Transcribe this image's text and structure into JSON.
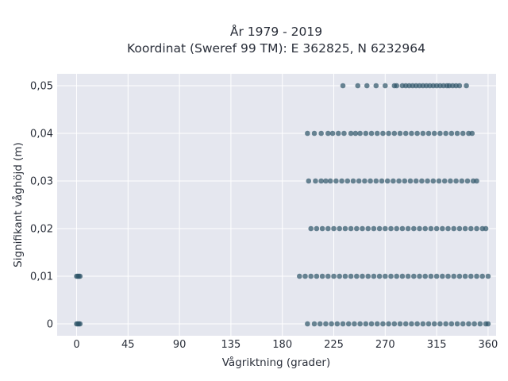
{
  "chart_data": {
    "type": "scatter",
    "title_line1": "År 1979 - 2019",
    "title_line2": "Koordinat (Sweref 99 TM): E 362825, N 6232964",
    "xlabel": "Vågriktning (grader)",
    "ylabel": "Signifikant våghöjd (m)",
    "xlim": [
      -17,
      367
    ],
    "ylim": [
      -0.0025,
      0.0525
    ],
    "x_ticks": [
      0,
      45,
      90,
      135,
      180,
      225,
      270,
      315,
      360
    ],
    "y_ticks": [
      0,
      0.01,
      0.02,
      0.03,
      0.04,
      0.05
    ],
    "y_tick_labels": [
      "0",
      "0,01",
      "0,02",
      "0,03",
      "0,04",
      "0,05"
    ],
    "grid": true,
    "background": "#e5e7ef",
    "marker_color": "#2e5468",
    "series": [
      {
        "values": [
          {
            "x": 0,
            "y": 0
          },
          {
            "x": 1,
            "y": 0
          },
          {
            "x": 2,
            "y": 0
          },
          {
            "x": 3,
            "y": 0
          },
          {
            "x": 0,
            "y": 0.01
          },
          {
            "x": 1,
            "y": 0.01
          },
          {
            "x": 2,
            "y": 0.01
          },
          {
            "x": 3,
            "y": 0.01
          },
          {
            "x": 202,
            "y": 0
          },
          {
            "x": 208,
            "y": 0
          },
          {
            "x": 213,
            "y": 0
          },
          {
            "x": 218,
            "y": 0
          },
          {
            "x": 223,
            "y": 0
          },
          {
            "x": 228,
            "y": 0
          },
          {
            "x": 233,
            "y": 0
          },
          {
            "x": 238,
            "y": 0
          },
          {
            "x": 243,
            "y": 0
          },
          {
            "x": 248,
            "y": 0
          },
          {
            "x": 253,
            "y": 0
          },
          {
            "x": 258,
            "y": 0
          },
          {
            "x": 263,
            "y": 0
          },
          {
            "x": 268,
            "y": 0
          },
          {
            "x": 273,
            "y": 0
          },
          {
            "x": 278,
            "y": 0
          },
          {
            "x": 283,
            "y": 0
          },
          {
            "x": 288,
            "y": 0
          },
          {
            "x": 293,
            "y": 0
          },
          {
            "x": 298,
            "y": 0
          },
          {
            "x": 303,
            "y": 0
          },
          {
            "x": 308,
            "y": 0
          },
          {
            "x": 313,
            "y": 0
          },
          {
            "x": 318,
            "y": 0
          },
          {
            "x": 323,
            "y": 0
          },
          {
            "x": 328,
            "y": 0
          },
          {
            "x": 333,
            "y": 0
          },
          {
            "x": 338,
            "y": 0
          },
          {
            "x": 343,
            "y": 0
          },
          {
            "x": 348,
            "y": 0
          },
          {
            "x": 353,
            "y": 0
          },
          {
            "x": 358,
            "y": 0
          },
          {
            "x": 360,
            "y": 0
          },
          {
            "x": 195,
            "y": 0.01
          },
          {
            "x": 200,
            "y": 0.01
          },
          {
            "x": 205,
            "y": 0.01
          },
          {
            "x": 210,
            "y": 0.01
          },
          {
            "x": 215,
            "y": 0.01
          },
          {
            "x": 220,
            "y": 0.01
          },
          {
            "x": 225,
            "y": 0.01
          },
          {
            "x": 230,
            "y": 0.01
          },
          {
            "x": 235,
            "y": 0.01
          },
          {
            "x": 240,
            "y": 0.01
          },
          {
            "x": 245,
            "y": 0.01
          },
          {
            "x": 250,
            "y": 0.01
          },
          {
            "x": 255,
            "y": 0.01
          },
          {
            "x": 260,
            "y": 0.01
          },
          {
            "x": 265,
            "y": 0.01
          },
          {
            "x": 270,
            "y": 0.01
          },
          {
            "x": 275,
            "y": 0.01
          },
          {
            "x": 280,
            "y": 0.01
          },
          {
            "x": 285,
            "y": 0.01
          },
          {
            "x": 290,
            "y": 0.01
          },
          {
            "x": 295,
            "y": 0.01
          },
          {
            "x": 300,
            "y": 0.01
          },
          {
            "x": 305,
            "y": 0.01
          },
          {
            "x": 310,
            "y": 0.01
          },
          {
            "x": 315,
            "y": 0.01
          },
          {
            "x": 320,
            "y": 0.01
          },
          {
            "x": 325,
            "y": 0.01
          },
          {
            "x": 330,
            "y": 0.01
          },
          {
            "x": 335,
            "y": 0.01
          },
          {
            "x": 340,
            "y": 0.01
          },
          {
            "x": 345,
            "y": 0.01
          },
          {
            "x": 350,
            "y": 0.01
          },
          {
            "x": 355,
            "y": 0.01
          },
          {
            "x": 360,
            "y": 0.01
          },
          {
            "x": 205,
            "y": 0.02
          },
          {
            "x": 210,
            "y": 0.02
          },
          {
            "x": 215,
            "y": 0.02
          },
          {
            "x": 220,
            "y": 0.02
          },
          {
            "x": 225,
            "y": 0.02
          },
          {
            "x": 230,
            "y": 0.02
          },
          {
            "x": 235,
            "y": 0.02
          },
          {
            "x": 240,
            "y": 0.02
          },
          {
            "x": 245,
            "y": 0.02
          },
          {
            "x": 250,
            "y": 0.02
          },
          {
            "x": 255,
            "y": 0.02
          },
          {
            "x": 260,
            "y": 0.02
          },
          {
            "x": 265,
            "y": 0.02
          },
          {
            "x": 270,
            "y": 0.02
          },
          {
            "x": 275,
            "y": 0.02
          },
          {
            "x": 280,
            "y": 0.02
          },
          {
            "x": 285,
            "y": 0.02
          },
          {
            "x": 290,
            "y": 0.02
          },
          {
            "x": 295,
            "y": 0.02
          },
          {
            "x": 300,
            "y": 0.02
          },
          {
            "x": 305,
            "y": 0.02
          },
          {
            "x": 310,
            "y": 0.02
          },
          {
            "x": 315,
            "y": 0.02
          },
          {
            "x": 320,
            "y": 0.02
          },
          {
            "x": 325,
            "y": 0.02
          },
          {
            "x": 330,
            "y": 0.02
          },
          {
            "x": 335,
            "y": 0.02
          },
          {
            "x": 340,
            "y": 0.02
          },
          {
            "x": 345,
            "y": 0.02
          },
          {
            "x": 350,
            "y": 0.02
          },
          {
            "x": 355,
            "y": 0.02
          },
          {
            "x": 358,
            "y": 0.02
          },
          {
            "x": 203,
            "y": 0.03
          },
          {
            "x": 209,
            "y": 0.03
          },
          {
            "x": 214,
            "y": 0.03
          },
          {
            "x": 218,
            "y": 0.03
          },
          {
            "x": 222,
            "y": 0.03
          },
          {
            "x": 227,
            "y": 0.03
          },
          {
            "x": 232,
            "y": 0.03
          },
          {
            "x": 237,
            "y": 0.03
          },
          {
            "x": 242,
            "y": 0.03
          },
          {
            "x": 247,
            "y": 0.03
          },
          {
            "x": 252,
            "y": 0.03
          },
          {
            "x": 257,
            "y": 0.03
          },
          {
            "x": 262,
            "y": 0.03
          },
          {
            "x": 267,
            "y": 0.03
          },
          {
            "x": 272,
            "y": 0.03
          },
          {
            "x": 277,
            "y": 0.03
          },
          {
            "x": 282,
            "y": 0.03
          },
          {
            "x": 287,
            "y": 0.03
          },
          {
            "x": 292,
            "y": 0.03
          },
          {
            "x": 297,
            "y": 0.03
          },
          {
            "x": 302,
            "y": 0.03
          },
          {
            "x": 307,
            "y": 0.03
          },
          {
            "x": 312,
            "y": 0.03
          },
          {
            "x": 317,
            "y": 0.03
          },
          {
            "x": 322,
            "y": 0.03
          },
          {
            "x": 327,
            "y": 0.03
          },
          {
            "x": 332,
            "y": 0.03
          },
          {
            "x": 337,
            "y": 0.03
          },
          {
            "x": 342,
            "y": 0.03
          },
          {
            "x": 347,
            "y": 0.03
          },
          {
            "x": 350,
            "y": 0.03
          },
          {
            "x": 202,
            "y": 0.04
          },
          {
            "x": 208,
            "y": 0.04
          },
          {
            "x": 214,
            "y": 0.04
          },
          {
            "x": 220,
            "y": 0.04
          },
          {
            "x": 224,
            "y": 0.04
          },
          {
            "x": 229,
            "y": 0.04
          },
          {
            "x": 234,
            "y": 0.04
          },
          {
            "x": 240,
            "y": 0.04
          },
          {
            "x": 244,
            "y": 0.04
          },
          {
            "x": 248,
            "y": 0.04
          },
          {
            "x": 253,
            "y": 0.04
          },
          {
            "x": 258,
            "y": 0.04
          },
          {
            "x": 263,
            "y": 0.04
          },
          {
            "x": 268,
            "y": 0.04
          },
          {
            "x": 273,
            "y": 0.04
          },
          {
            "x": 278,
            "y": 0.04
          },
          {
            "x": 283,
            "y": 0.04
          },
          {
            "x": 288,
            "y": 0.04
          },
          {
            "x": 293,
            "y": 0.04
          },
          {
            "x": 298,
            "y": 0.04
          },
          {
            "x": 303,
            "y": 0.04
          },
          {
            "x": 308,
            "y": 0.04
          },
          {
            "x": 313,
            "y": 0.04
          },
          {
            "x": 318,
            "y": 0.04
          },
          {
            "x": 323,
            "y": 0.04
          },
          {
            "x": 328,
            "y": 0.04
          },
          {
            "x": 333,
            "y": 0.04
          },
          {
            "x": 338,
            "y": 0.04
          },
          {
            "x": 343,
            "y": 0.04
          },
          {
            "x": 346,
            "y": 0.04
          },
          {
            "x": 233,
            "y": 0.05
          },
          {
            "x": 246,
            "y": 0.05
          },
          {
            "x": 254,
            "y": 0.05
          },
          {
            "x": 262,
            "y": 0.05
          },
          {
            "x": 270,
            "y": 0.05
          },
          {
            "x": 278,
            "y": 0.05
          },
          {
            "x": 280,
            "y": 0.05
          },
          {
            "x": 285,
            "y": 0.05
          },
          {
            "x": 288,
            "y": 0.05
          },
          {
            "x": 291,
            "y": 0.05
          },
          {
            "x": 294,
            "y": 0.05
          },
          {
            "x": 297,
            "y": 0.05
          },
          {
            "x": 300,
            "y": 0.05
          },
          {
            "x": 303,
            "y": 0.05
          },
          {
            "x": 306,
            "y": 0.05
          },
          {
            "x": 309,
            "y": 0.05
          },
          {
            "x": 312,
            "y": 0.05
          },
          {
            "x": 315,
            "y": 0.05
          },
          {
            "x": 318,
            "y": 0.05
          },
          {
            "x": 321,
            "y": 0.05
          },
          {
            "x": 324,
            "y": 0.05
          },
          {
            "x": 326,
            "y": 0.05
          },
          {
            "x": 329,
            "y": 0.05
          },
          {
            "x": 332,
            "y": 0.05
          },
          {
            "x": 335,
            "y": 0.05
          },
          {
            "x": 341,
            "y": 0.05
          }
        ]
      }
    ]
  }
}
